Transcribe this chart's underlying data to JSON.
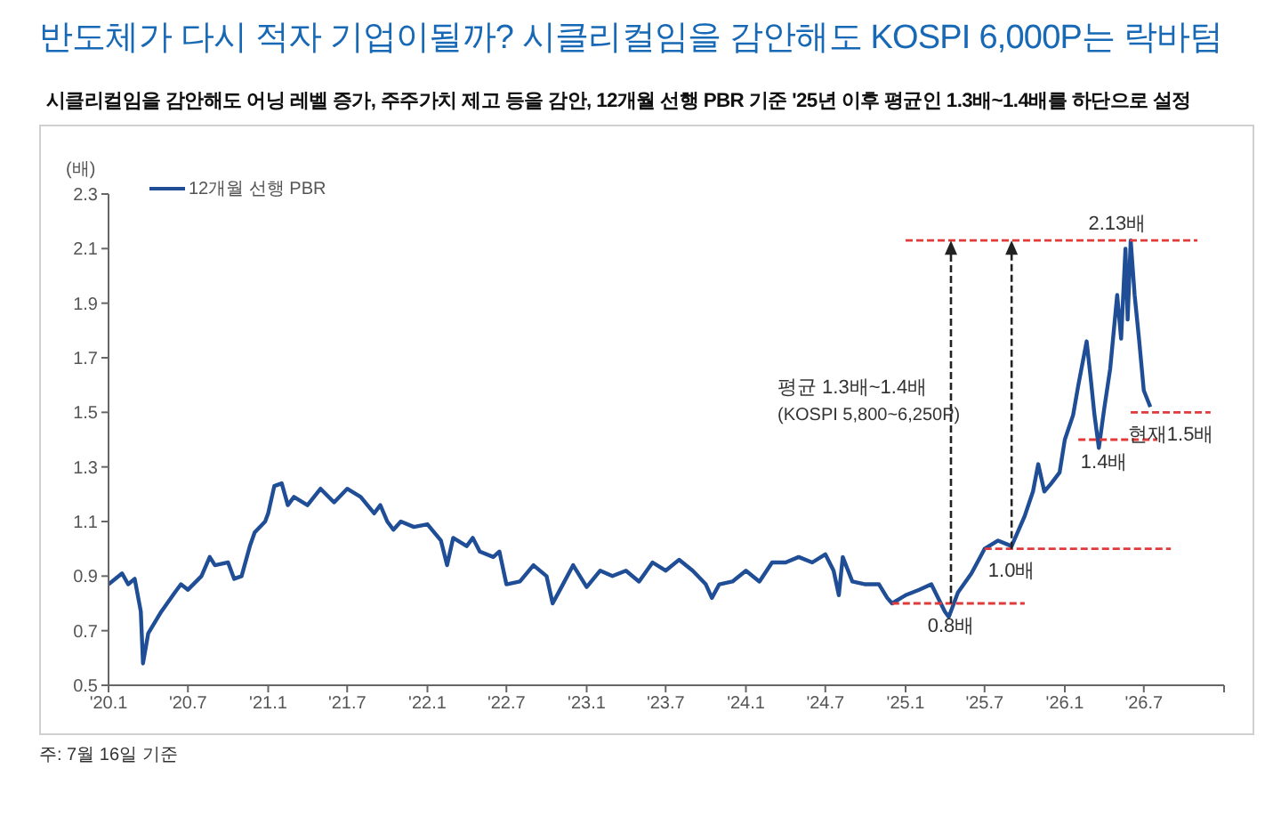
{
  "chart_data": {
    "type": "line",
    "title": "반도체가 다시 적자 기업이될까? 시클리컬임을 감안해도 KOSPI 6,000P는 락바텀",
    "subtitle": "시클리컬임을 감안해도 어닝 레벨 증가, 주주가치 제고 등을 감안, 12개월 선행 PBR 기준 '25년 이후 평균인 1.3배~1.4배를 하단으로 설정",
    "ylabel": "(배)",
    "legend": "top left",
    "xlim": [
      "2020-01",
      "2027-01"
    ],
    "xticks": [
      {
        "value": "2020-01",
        "label": "'20.1"
      },
      {
        "value": "2020-07",
        "label": "'20.7"
      },
      {
        "value": "2021-01",
        "label": "'21.1"
      },
      {
        "value": "2021-07",
        "label": "'21.7"
      },
      {
        "value": "2022-01",
        "label": "'22.1"
      },
      {
        "value": "2022-07",
        "label": "'22.7"
      },
      {
        "value": "2023-01",
        "label": "'23.1"
      },
      {
        "value": "2023-07",
        "label": "'23.7"
      },
      {
        "value": "2024-01",
        "label": "'24.1"
      },
      {
        "value": "2024-07",
        "label": "'24.7"
      },
      {
        "value": "2025-01",
        "label": "'25.1"
      },
      {
        "value": "2025-07",
        "label": "'25.7"
      },
      {
        "value": "2026-01",
        "label": "'26.1"
      },
      {
        "value": "2026-07",
        "label": "'26.7"
      },
      {
        "value": "2027-01",
        "label": null
      }
    ],
    "ylim": [
      0.5,
      2.3
    ],
    "yticks": [
      0.5,
      0.7,
      0.9,
      1.1,
      1.3,
      1.5,
      1.7,
      1.9,
      2.1,
      2.3
    ],
    "series": [
      {
        "name": "12개월 선행 PBR",
        "color": "#1f4e96",
        "x": [
          "2020-01-01",
          "2020-02-01",
          "2020-02-15",
          "2020-03-01",
          "2020-03-15",
          "2020-03-20",
          "2020-04-01",
          "2020-05-01",
          "2020-06-01",
          "2020-06-15",
          "2020-07-01",
          "2020-08-01",
          "2020-08-20",
          "2020-09-01",
          "2020-10-01",
          "2020-10-15",
          "2020-11-01",
          "2020-11-20",
          "2020-12-01",
          "2020-12-25",
          "2021-01-01",
          "2021-01-15",
          "2021-02-01",
          "2021-02-15",
          "2021-03-01",
          "2021-04-01",
          "2021-05-01",
          "2021-06-01",
          "2021-07-01",
          "2021-08-01",
          "2021-09-01",
          "2021-09-15",
          "2021-10-01",
          "2021-10-15",
          "2021-11-01",
          "2021-12-01",
          "2022-01-01",
          "2022-02-01",
          "2022-02-15",
          "2022-03-01",
          "2022-04-01",
          "2022-04-15",
          "2022-05-01",
          "2022-06-01",
          "2022-06-15",
          "2022-07-01",
          "2022-08-01",
          "2022-09-01",
          "2022-10-01",
          "2022-10-15",
          "2022-11-01",
          "2022-12-01",
          "2023-01-01",
          "2023-02-01",
          "2023-03-01",
          "2023-04-01",
          "2023-05-01",
          "2023-06-01",
          "2023-07-01",
          "2023-08-01",
          "2023-09-01",
          "2023-10-01",
          "2023-10-15",
          "2023-11-01",
          "2023-12-01",
          "2024-01-01",
          "2024-02-01",
          "2024-03-01",
          "2024-04-01",
          "2024-05-01",
          "2024-06-01",
          "2024-07-01",
          "2024-07-20",
          "2024-08-01",
          "2024-08-10",
          "2024-09-01",
          "2024-10-01",
          "2024-11-01",
          "2024-11-20",
          "2024-12-01",
          "2025-01-01",
          "2025-02-01",
          "2025-03-01",
          "2025-04-01",
          "2025-04-10",
          "2025-05-01",
          "2025-06-01",
          "2025-07-01",
          "2025-08-01",
          "2025-09-01",
          "2025-10-01",
          "2025-10-20",
          "2025-11-01",
          "2025-11-15",
          "2025-12-01",
          "2025-12-20",
          "2026-01-01",
          "2026-01-20",
          "2026-02-01",
          "2026-02-20",
          "2026-03-01",
          "2026-03-10",
          "2026-03-20",
          "2026-04-01",
          "2026-04-15",
          "2026-05-01",
          "2026-05-10",
          "2026-05-20",
          "2026-05-25",
          "2026-06-01",
          "2026-06-10",
          "2026-06-20",
          "2026-07-01",
          "2026-07-16"
        ],
        "values": [
          0.87,
          0.91,
          0.87,
          0.89,
          0.77,
          0.58,
          0.69,
          0.77,
          0.84,
          0.87,
          0.85,
          0.9,
          0.97,
          0.94,
          0.95,
          0.89,
          0.9,
          1.01,
          1.06,
          1.1,
          1.13,
          1.23,
          1.24,
          1.16,
          1.19,
          1.16,
          1.22,
          1.17,
          1.22,
          1.19,
          1.13,
          1.16,
          1.1,
          1.07,
          1.1,
          1.08,
          1.09,
          1.03,
          0.94,
          1.04,
          1.01,
          1.04,
          0.99,
          0.97,
          0.99,
          0.87,
          0.88,
          0.94,
          0.9,
          0.8,
          0.85,
          0.94,
          0.86,
          0.92,
          0.9,
          0.92,
          0.88,
          0.95,
          0.92,
          0.96,
          0.92,
          0.87,
          0.82,
          0.87,
          0.88,
          0.92,
          0.88,
          0.95,
          0.95,
          0.97,
          0.95,
          0.98,
          0.92,
          0.83,
          0.97,
          0.88,
          0.87,
          0.87,
          0.82,
          0.8,
          0.83,
          0.85,
          0.87,
          0.77,
          0.75,
          0.84,
          0.91,
          1.0,
          1.03,
          1.01,
          1.12,
          1.21,
          1.31,
          1.21,
          1.24,
          1.28,
          1.4,
          1.49,
          1.6,
          1.76,
          1.63,
          1.49,
          1.37,
          1.51,
          1.66,
          1.93,
          1.77,
          2.1,
          1.84,
          2.13,
          1.93,
          1.77,
          1.58,
          1.52
        ]
      },
      {
        "type": "line",
        "color": "#e03a3a",
        "line_style": "dashed",
        "x": [
          "2025-01",
          "2026-11"
        ],
        "values": [
          2.13,
          2.13
        ]
      },
      {
        "type": "line",
        "color": "#e03a3a",
        "line_style": "dashed",
        "x": [
          "2024-12",
          "2025-10"
        ],
        "values": [
          0.8,
          0.8
        ]
      },
      {
        "type": "line",
        "color": "#e03a3a",
        "line_style": "dashed",
        "x": [
          "2025-07",
          "2026-09"
        ],
        "values": [
          1.0,
          1.0
        ]
      },
      {
        "type": "line",
        "color": "#e03a3a",
        "line_style": "dashed",
        "x": [
          "2026-02",
          "2026-08"
        ],
        "values": [
          1.4,
          1.4
        ]
      },
      {
        "type": "line",
        "color": "#e03a3a",
        "line_style": "dashed",
        "x": [
          "2026-06",
          "2026-12"
        ],
        "values": [
          1.5,
          1.5
        ]
      }
    ],
    "annotations": [
      {
        "text": "2.13배",
        "x": "2026-05",
        "y": 2.13
      },
      {
        "text": "0.8배",
        "x": "2025-04-15",
        "y": 0.8
      },
      {
        "text": "1.0배",
        "x": "2025-09",
        "y": 1.0
      },
      {
        "text": "1.4배",
        "x": "2026-04",
        "y": 1.4
      },
      {
        "text": "현재1.5배",
        "x": "2026-09",
        "y": 1.5
      },
      "평균 1.3배~1.4배",
      "(KOSPI 5,800~6,250P)",
      "주: 7월 16일 기준"
    ]
  }
}
